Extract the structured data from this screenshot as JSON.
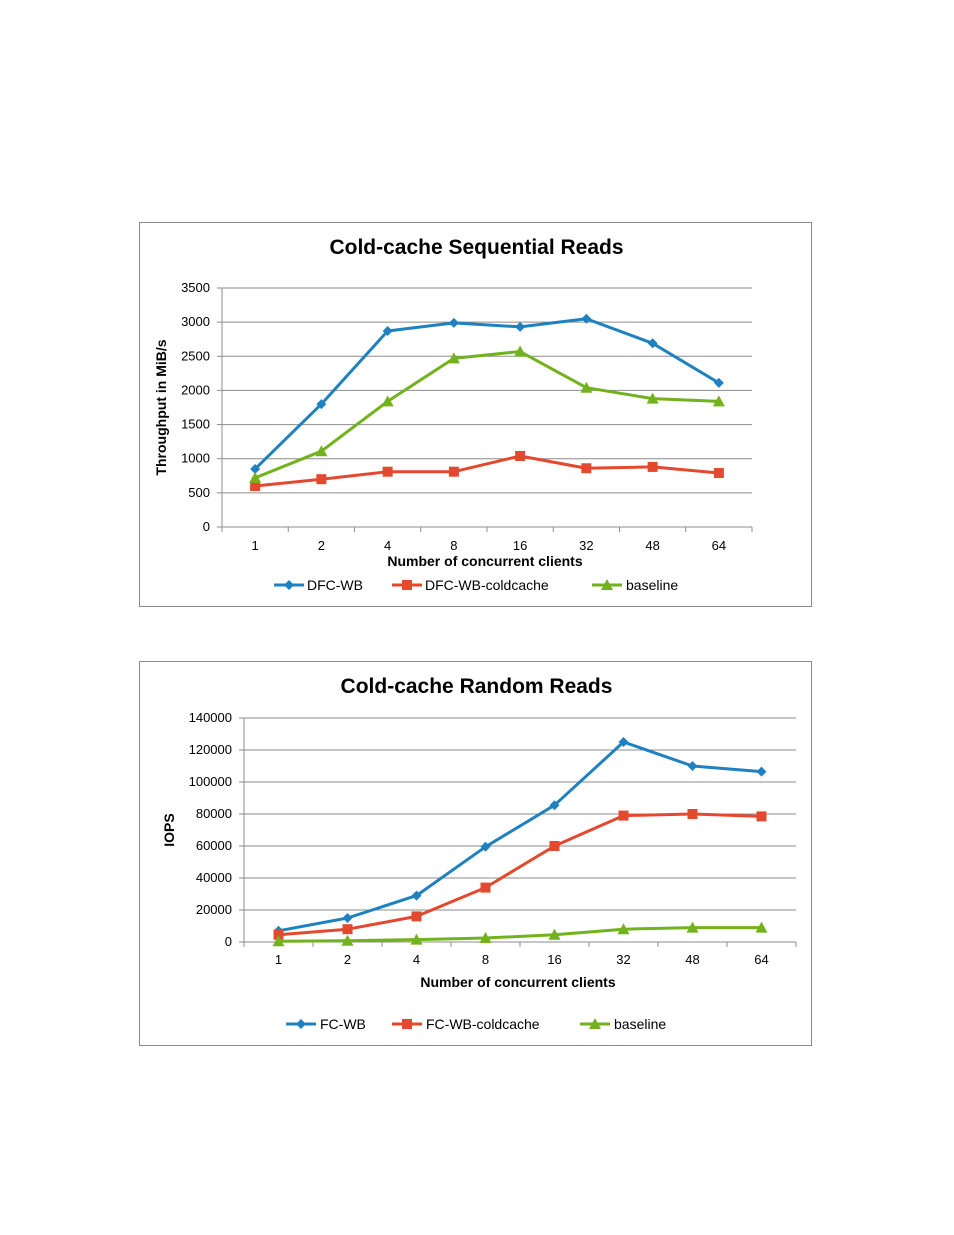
{
  "colors": {
    "blue": "#1f81c0",
    "red": "#e2492e",
    "green": "#72b21d",
    "grid": "#8c8c8c"
  },
  "chart_data": [
    {
      "type": "line",
      "title": "Cold-cache Sequential Reads",
      "xlabel": "Number  of concurrent clients",
      "ylabel": "Throughput in MiB/s",
      "categories": [
        "1",
        "2",
        "4",
        "8",
        "16",
        "32",
        "48",
        "64"
      ],
      "ylim": [
        0,
        3500
      ],
      "yticks": [
        0,
        500,
        1000,
        1500,
        2000,
        2500,
        3000,
        3500
      ],
      "grid": true,
      "legend": "bottom",
      "series": [
        {
          "name": "DFC-WB",
          "color": "#1f81c0",
          "marker": "diamond",
          "values": [
            850,
            1800,
            2870,
            2990,
            2930,
            3050,
            2690,
            2110
          ]
        },
        {
          "name": "DFC-WB-coldcache",
          "color": "#e2492e",
          "marker": "square",
          "values": [
            600,
            700,
            810,
            810,
            1040,
            860,
            880,
            790
          ]
        },
        {
          "name": "baseline",
          "color": "#72b21d",
          "marker": "triangle",
          "values": [
            720,
            1110,
            1840,
            2470,
            2570,
            2040,
            1880,
            1840
          ]
        }
      ]
    },
    {
      "type": "line",
      "title": "Cold-cache Random Reads",
      "xlabel": "Number  of concurrent clients",
      "ylabel": "IOPS",
      "categories": [
        "1",
        "2",
        "4",
        "8",
        "16",
        "32",
        "48",
        "64"
      ],
      "ylim": [
        0,
        140000
      ],
      "yticks": [
        0,
        20000,
        40000,
        60000,
        80000,
        100000,
        120000,
        140000
      ],
      "grid": true,
      "legend": "bottom",
      "series": [
        {
          "name": "FC-WB",
          "color": "#1f81c0",
          "marker": "diamond",
          "values": [
            7000,
            15000,
            29000,
            59500,
            85500,
            125000,
            110000,
            106500
          ]
        },
        {
          "name": "FC-WB-coldcache",
          "color": "#e2492e",
          "marker": "square",
          "values": [
            4500,
            8000,
            16000,
            34000,
            60000,
            79000,
            80000,
            78500
          ]
        },
        {
          "name": "baseline",
          "color": "#72b21d",
          "marker": "triangle",
          "values": [
            500,
            800,
            1500,
            2500,
            4500,
            8000,
            9000,
            9000
          ]
        }
      ]
    }
  ]
}
